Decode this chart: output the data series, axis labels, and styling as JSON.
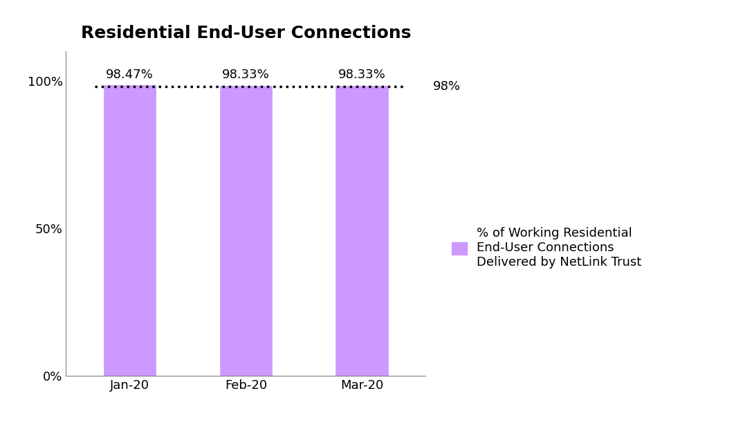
{
  "title": "Residential End-User Connections",
  "categories": [
    "Jan-20",
    "Feb-20",
    "Mar-20"
  ],
  "values": [
    98.47,
    98.33,
    98.33
  ],
  "bar_color": "#cc99ff",
  "bar_labels": [
    "98.47%",
    "98.33%",
    "98.33%"
  ],
  "threshold_value": 98,
  "threshold_label": "98%",
  "yticks": [
    0,
    50,
    100
  ],
  "ytick_labels": [
    "0%",
    "50%",
    "100%"
  ],
  "ylim": [
    0,
    110
  ],
  "legend_text": "% of Working Residential\nEnd-User Connections\nDelivered by NetLink Trust",
  "title_fontsize": 18,
  "label_fontsize": 13,
  "tick_fontsize": 13,
  "legend_fontsize": 13,
  "bar_width": 0.45,
  "background_color": "#ffffff"
}
